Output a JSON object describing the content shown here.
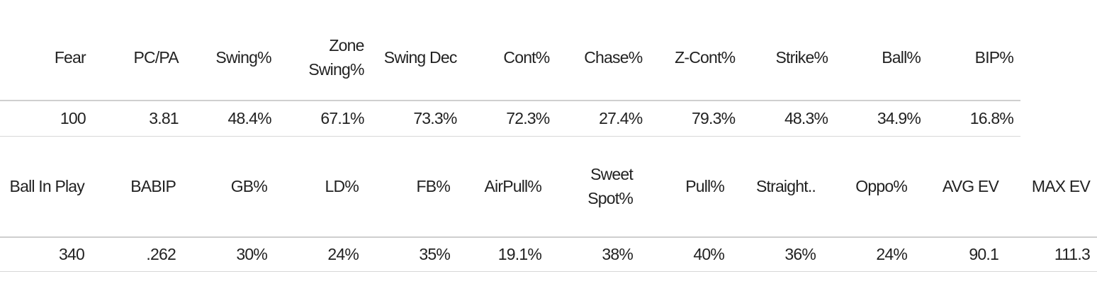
{
  "tables": [
    {
      "headers": [
        "Fear",
        "PC/PA",
        "Swing%",
        "Zone Swing%",
        "Swing Dec",
        "Cont%",
        "Chase%",
        "Z-Cont%",
        "Strike%",
        "Ball%",
        "BIP%"
      ],
      "rows": [
        [
          "100",
          "3.81",
          "48.4%",
          "67.1%",
          "73.3%",
          "72.3%",
          "27.4%",
          "79.3%",
          "48.3%",
          "34.9%",
          "16.8%"
        ]
      ]
    },
    {
      "headers": [
        "Ball In Play",
        "BABIP",
        "GB%",
        "LD%",
        "FB%",
        "AirPull%",
        "Sweet Spot%",
        "Pull%",
        "Straight..",
        "Oppo%",
        "AVG EV",
        "MAX EV"
      ],
      "rows": [
        [
          "340",
          ".262",
          "30%",
          "24%",
          "35%",
          "19.1%",
          "38%",
          "40%",
          "36%",
          "24%",
          "90.1",
          "111.3"
        ]
      ]
    }
  ]
}
